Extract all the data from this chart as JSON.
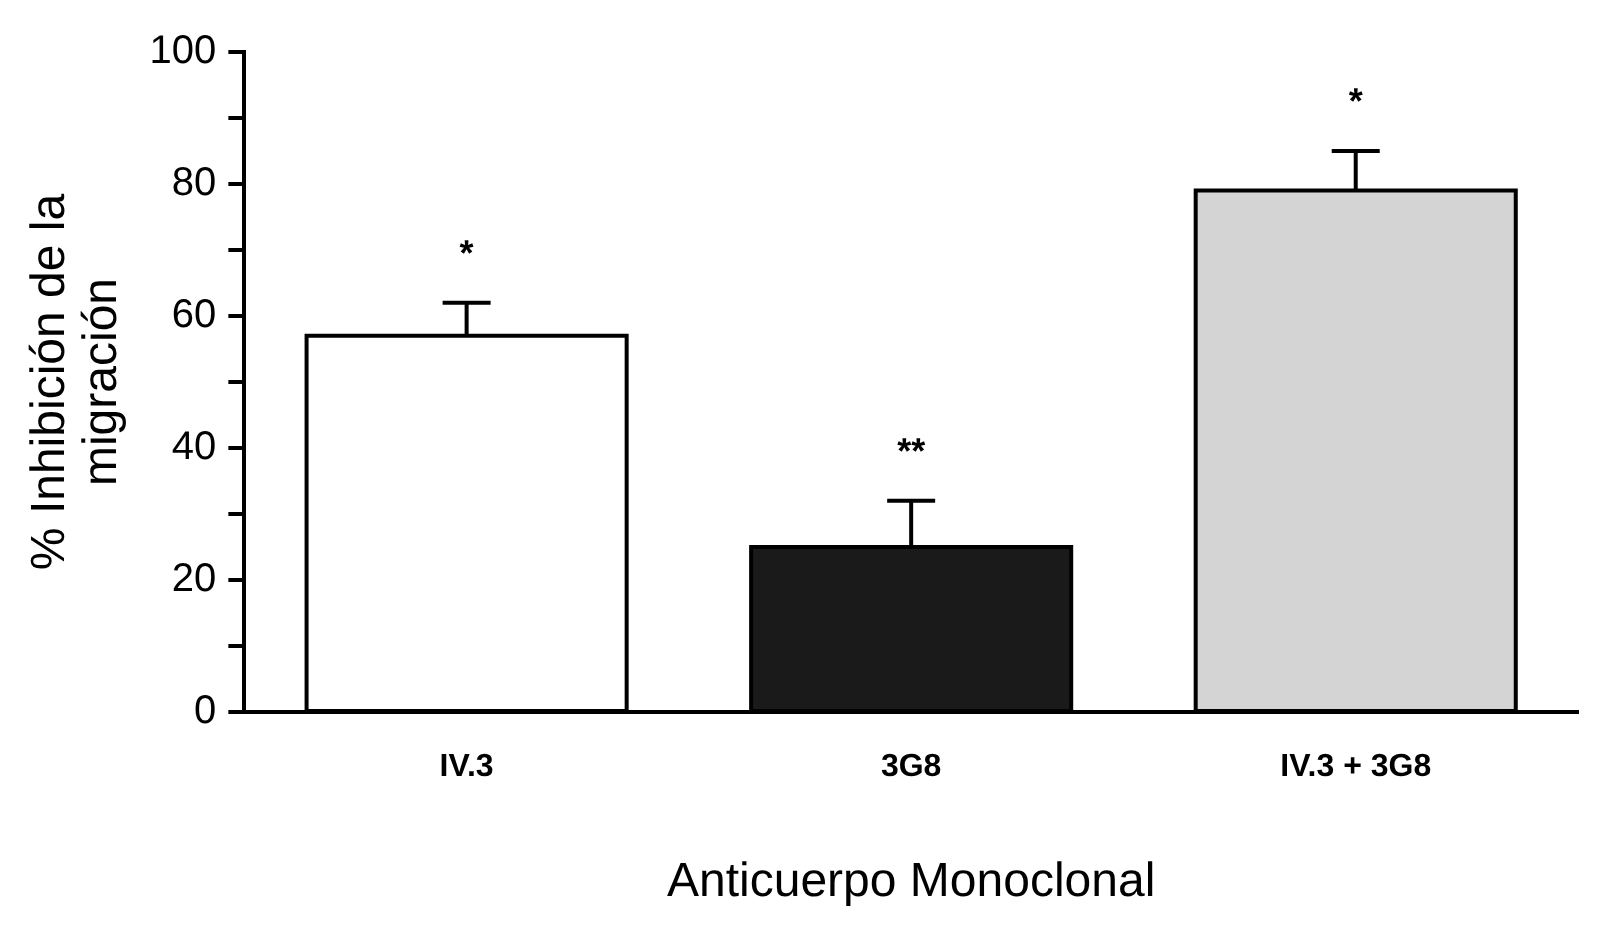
{
  "chart_data": {
    "type": "bar",
    "xlabel": "Anticuerpo Monoclonal",
    "ylabel": "% Inhibición de la migración",
    "categories": [
      "IV.3",
      "3G8",
      "IV.3 + 3G8"
    ],
    "values": [
      57,
      25,
      79
    ],
    "colors": [
      "#ffffff",
      "#1a1a1a",
      "#d4d4d4"
    ],
    "errors": [
      [
        57,
        62
      ],
      [
        25,
        32
      ],
      [
        79,
        85
      ]
    ],
    "ylim": [
      0,
      100
    ],
    "yticks": [
      0,
      {
        "value": 10,
        "label": null
      },
      20,
      {
        "value": 30,
        "label": null
      },
      40,
      {
        "value": 50,
        "label": null
      },
      60,
      {
        "value": 70,
        "label": null
      },
      80,
      {
        "value": 90,
        "label": null
      },
      100
    ],
    "grid": false,
    "legend": false,
    "annotations": [
      "*",
      "**",
      "*"
    ]
  }
}
